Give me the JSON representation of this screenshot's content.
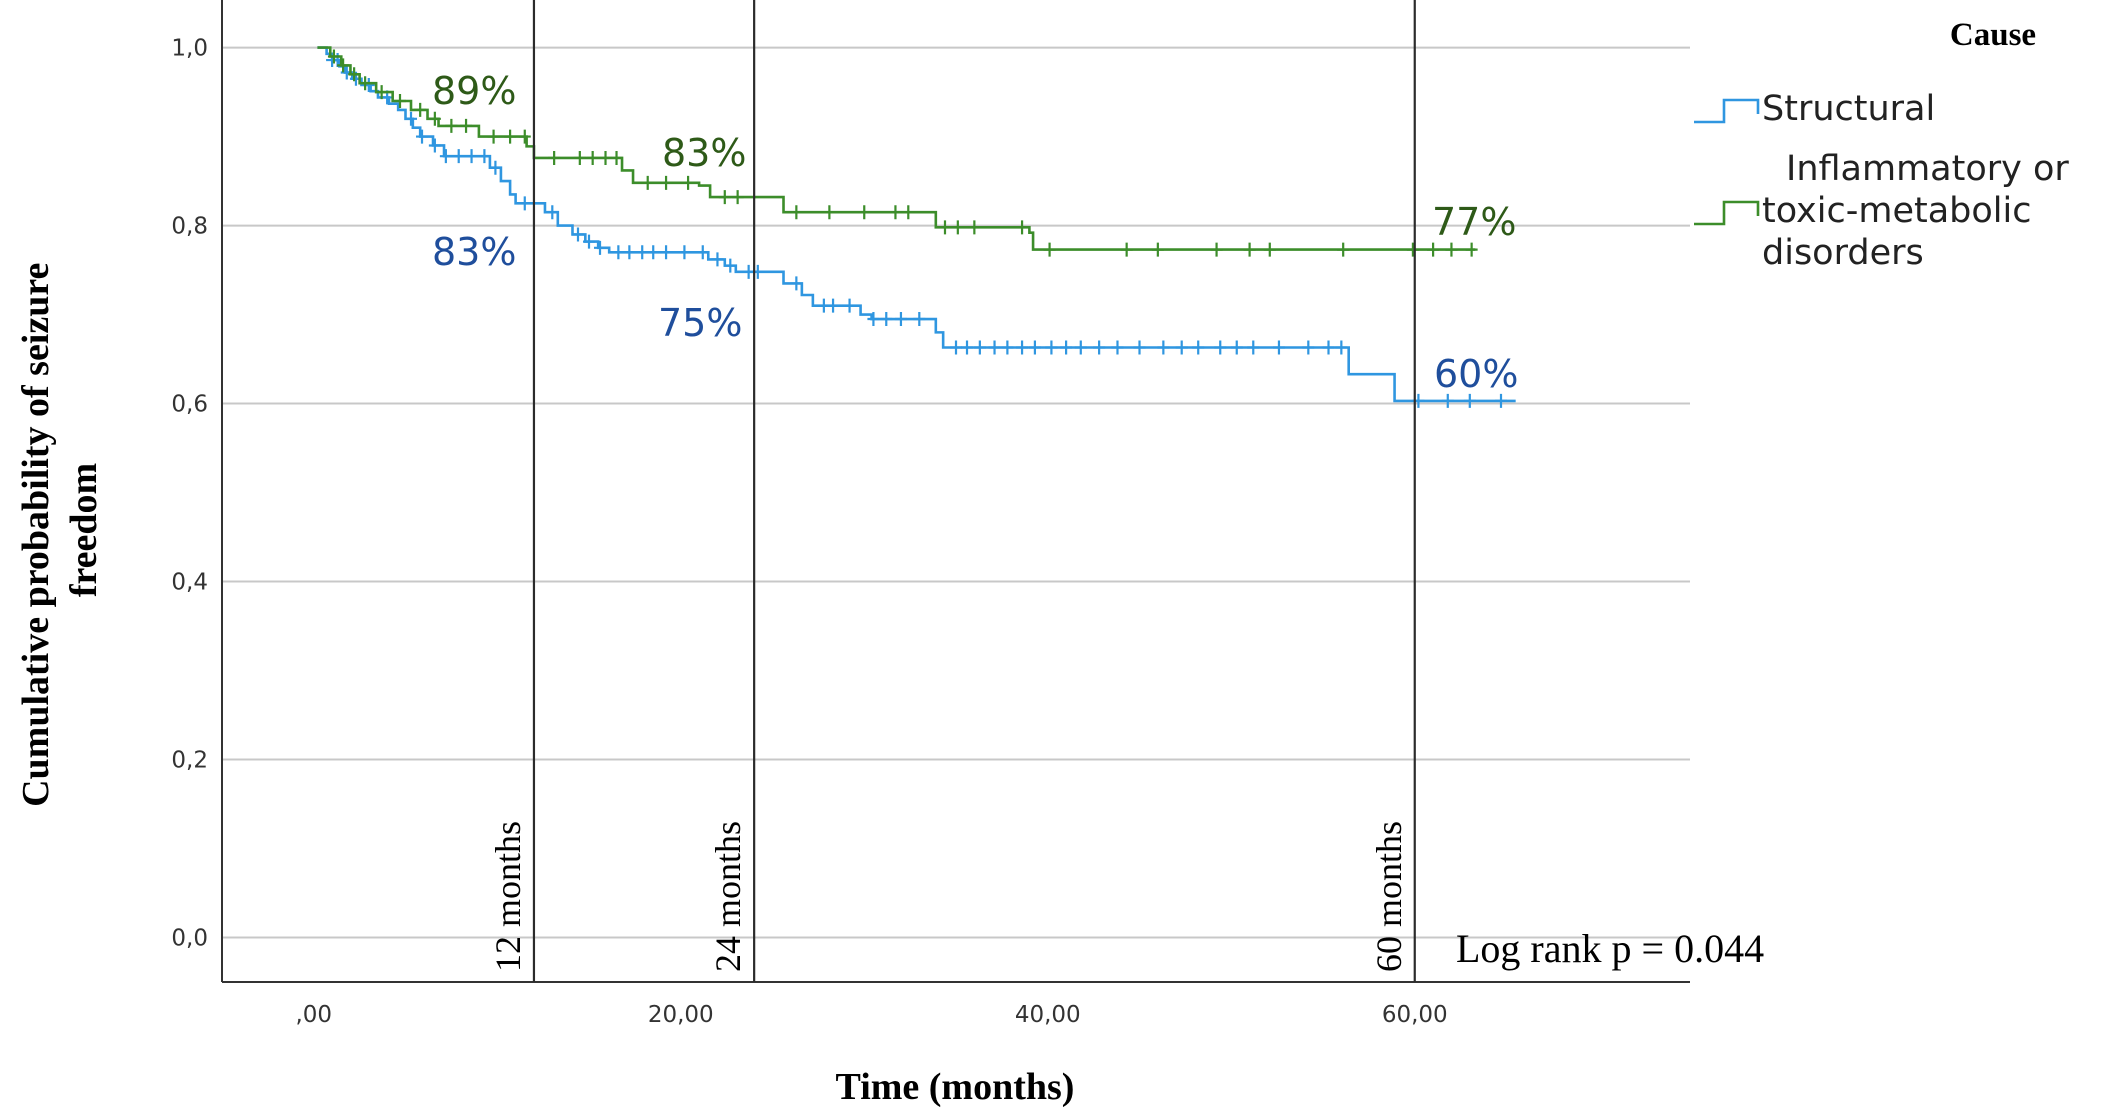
{
  "chart_data": {
    "type": "line",
    "subtype": "kaplan-meier",
    "xlabel": "Time (months)",
    "ylabel": "Cumulative probability of seizure freedom",
    "xlim": [
      -5,
      75
    ],
    "ylim": [
      -0.05,
      1.04
    ],
    "x_ticks": [
      0,
      20,
      40,
      60
    ],
    "x_tick_labels": [
      ",00",
      "20,00",
      "40,00",
      "60,00"
    ],
    "y_ticks": [
      0,
      0.2,
      0.4,
      0.6,
      0.8,
      1.0
    ],
    "y_tick_labels": [
      "0,0",
      "0,2",
      "0,4",
      "0,6",
      "0,8",
      "1,0"
    ],
    "grid": "horizontal",
    "legend": {
      "title": "Cause",
      "placement": "right",
      "entries": [
        {
          "label": "Structural",
          "color": "#2f96e0"
        },
        {
          "label_lines": [
            "Inflammatory or",
            "toxic-metabolic",
            "disorders"
          ],
          "color": "#3c8d2a"
        }
      ]
    },
    "reference_lines": [
      {
        "x": 12,
        "label": "12 months"
      },
      {
        "x": 24,
        "label": "24 months"
      },
      {
        "x": 60,
        "label": "60 months"
      }
    ],
    "annotations": [
      {
        "text": "89%",
        "series": "inflammatory",
        "x": 12
      },
      {
        "text": "83%",
        "series": "inflammatory",
        "x": 24
      },
      {
        "text": "77%",
        "series": "inflammatory",
        "x": 60
      },
      {
        "text": "83%",
        "series": "structural",
        "x": 12
      },
      {
        "text": "75%",
        "series": "structural",
        "x": 24
      },
      {
        "text": "60%",
        "series": "structural",
        "x": 60
      },
      {
        "text": "Log rank p = 0.044"
      }
    ],
    "series": [
      {
        "name": "Structural",
        "color": "#2f96e0",
        "label_color": "#1f4e9c",
        "steps": [
          [
            0.2,
            1.0
          ],
          [
            0.7,
            0.993
          ],
          [
            1.0,
            0.986
          ],
          [
            1.4,
            0.979
          ],
          [
            1.7,
            0.972
          ],
          [
            2.1,
            0.965
          ],
          [
            2.6,
            0.958
          ],
          [
            3.1,
            0.951
          ],
          [
            3.5,
            0.944
          ],
          [
            4.1,
            0.937
          ],
          [
            4.6,
            0.93
          ],
          [
            5.0,
            0.92
          ],
          [
            5.4,
            0.91
          ],
          [
            5.8,
            0.9
          ],
          [
            6.5,
            0.89
          ],
          [
            7.1,
            0.878
          ],
          [
            9.6,
            0.865
          ],
          [
            10.2,
            0.85
          ],
          [
            10.7,
            0.835
          ],
          [
            11.0,
            0.825
          ],
          [
            12.6,
            0.815
          ],
          [
            13.3,
            0.8
          ],
          [
            14.1,
            0.79
          ],
          [
            14.8,
            0.782
          ],
          [
            15.5,
            0.775
          ],
          [
            16.1,
            0.77
          ],
          [
            21.5,
            0.762
          ],
          [
            22.4,
            0.755
          ],
          [
            23.0,
            0.748
          ],
          [
            25.6,
            0.735
          ],
          [
            26.6,
            0.722
          ],
          [
            27.2,
            0.71
          ],
          [
            29.8,
            0.7
          ],
          [
            30.4,
            0.695
          ],
          [
            33.9,
            0.68
          ],
          [
            34.3,
            0.663
          ],
          [
            56.4,
            0.633
          ],
          [
            58.9,
            0.603
          ],
          [
            65.5,
            0.603
          ]
        ],
        "censor": [
          1.0,
          1.3,
          1.8,
          2.3,
          3.0,
          4.0,
          5.3,
          5.9,
          6.6,
          7.2,
          7.9,
          8.6,
          9.3,
          9.9,
          11.5,
          13.0,
          14.4,
          15.0,
          15.6,
          16.6,
          17.2,
          17.9,
          18.5,
          19.2,
          20.2,
          21.2,
          22.0,
          22.7,
          23.7,
          24.2,
          26.3,
          27.8,
          28.3,
          29.2,
          30.5,
          31.2,
          32.0,
          33.0,
          35.0,
          35.6,
          36.3,
          37.1,
          37.8,
          38.6,
          39.3,
          40.2,
          41.0,
          41.8,
          42.8,
          43.8,
          45.0,
          46.3,
          47.3,
          48.2,
          49.4,
          50.3,
          51.2,
          52.6,
          54.2,
          55.3,
          56.0,
          60.2,
          61.8,
          63.0,
          64.7
        ]
      },
      {
        "name": "Inflammatory or toxic-metabolic disorders",
        "color": "#3c8d2a",
        "label_color": "#2e5a18",
        "steps": [
          [
            0.2,
            1.0
          ],
          [
            0.9,
            0.99
          ],
          [
            1.5,
            0.98
          ],
          [
            2.0,
            0.97
          ],
          [
            2.5,
            0.96
          ],
          [
            3.4,
            0.95
          ],
          [
            4.3,
            0.94
          ],
          [
            5.3,
            0.93
          ],
          [
            6.2,
            0.92
          ],
          [
            6.8,
            0.912
          ],
          [
            9.0,
            0.9
          ],
          [
            11.6,
            0.889
          ],
          [
            12.0,
            0.876
          ],
          [
            16.8,
            0.862
          ],
          [
            17.4,
            0.848
          ],
          [
            21.0,
            0.845
          ],
          [
            21.6,
            0.832
          ],
          [
            24.2,
            0.832
          ],
          [
            25.6,
            0.815
          ],
          [
            33.9,
            0.798
          ],
          [
            39.0,
            0.792
          ],
          [
            39.2,
            0.773
          ],
          [
            63.3,
            0.773
          ]
        ],
        "censor": [
          1.1,
          1.6,
          2.2,
          2.8,
          3.7,
          4.7,
          5.8,
          6.6,
          7.5,
          8.3,
          9.8,
          10.7,
          11.5,
          13.1,
          14.5,
          15.2,
          15.9,
          16.5,
          18.2,
          19.2,
          20.4,
          22.4,
          23.1,
          26.3,
          28.1,
          30.0,
          31.7,
          32.4,
          34.4,
          35.1,
          36.0,
          38.6,
          40.1,
          44.3,
          46.0,
          49.2,
          51.0,
          52.1,
          56.1,
          59.9,
          61.0,
          62.0,
          63.1
        ]
      }
    ]
  }
}
